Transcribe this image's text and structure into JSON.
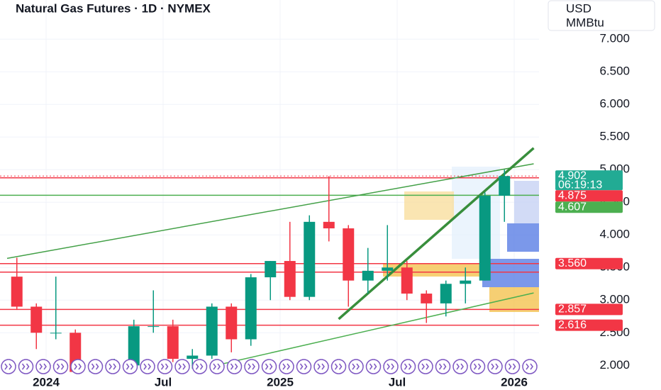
{
  "chart_data": {
    "type": "candlestick",
    "title": "Natural Gas Futures · 1D · NYMEX",
    "currency": "USD",
    "unit": "MMBtu",
    "x": [
      "2023-11",
      "2023-12",
      "2024-01",
      "2024-02",
      "2024-03",
      "2024-04",
      "2024-05",
      "2024-06",
      "2024-07",
      "2024-08",
      "2024-09",
      "2024-10",
      "2024-11",
      "2024-12",
      "2025-01",
      "2025-02",
      "2025-03",
      "2025-04",
      "2025-05",
      "2025-06",
      "2025-07",
      "2025-08",
      "2025-09",
      "2025-10",
      "2025-11",
      "2025-12"
    ],
    "open": [
      3.36,
      2.9,
      2.5,
      2.5,
      1.9,
      1.95,
      2.0,
      2.6,
      2.6,
      2.1,
      2.15,
      2.9,
      2.4,
      3.35,
      3.6,
      3.05,
      4.2,
      4.1,
      3.3,
      3.45,
      3.5,
      3.1,
      2.95,
      3.25,
      3.3,
      4.6
    ],
    "high": [
      3.65,
      2.95,
      3.36,
      2.55,
      2.0,
      2.1,
      2.7,
      3.15,
      2.7,
      2.25,
      2.95,
      2.95,
      3.4,
      3.6,
      4.2,
      4.3,
      4.9,
      4.15,
      3.8,
      4.15,
      3.6,
      3.15,
      3.3,
      3.5,
      4.65,
      5.0
    ],
    "low": [
      2.85,
      2.25,
      2.4,
      1.9,
      1.9,
      1.9,
      2.0,
      2.5,
      2.05,
      1.95,
      2.1,
      2.2,
      2.3,
      3.0,
      3.0,
      3.0,
      3.9,
      2.9,
      3.1,
      3.3,
      3.0,
      2.65,
      2.75,
      2.95,
      3.3,
      4.2
    ],
    "close": [
      2.9,
      2.5,
      2.5,
      1.9,
      1.95,
      2.0,
      2.6,
      2.6,
      2.1,
      2.15,
      2.9,
      2.4,
      3.35,
      3.6,
      3.05,
      4.2,
      4.1,
      3.3,
      3.45,
      3.5,
      3.1,
      2.95,
      3.25,
      3.3,
      4.6,
      4.902
    ],
    "up_color": "#089981",
    "down_color": "#f23645",
    "ylim": [
      1.84,
      7.6
    ],
    "yticks": [
      {
        "value": 2,
        "label": "2.000"
      },
      {
        "value": 2.5,
        "label": "2.500"
      },
      {
        "value": 3,
        "label": "3.000"
      },
      {
        "value": 3.5,
        "label": "3.500"
      },
      {
        "value": 4,
        "label": "4.000"
      },
      {
        "value": 4.5,
        "label": "4.500"
      },
      {
        "value": 5,
        "label": "5.000"
      },
      {
        "value": 5.5,
        "label": "5.500"
      },
      {
        "value": 6,
        "label": "6.000"
      },
      {
        "value": 6.5,
        "label": "6.500"
      },
      {
        "value": 7,
        "label": "7.000"
      }
    ],
    "xticks": [
      {
        "value": "2024-01",
        "label": "2024"
      },
      {
        "value": "2024-07",
        "label": "Jul"
      },
      {
        "value": "2025-01",
        "label": "2025"
      },
      {
        "value": "2025-07",
        "label": "Jul"
      },
      {
        "value": "2026-01",
        "label": "2026"
      }
    ],
    "grid": true,
    "last_price": 4.902,
    "last_color": "#22ab94",
    "countdown": "06:19:13",
    "levels": [
      {
        "value": 4.875,
        "label": "4.875",
        "color": "#f23645"
      },
      {
        "value": 4.607,
        "label": "4.607",
        "color": "#4caf50"
      },
      {
        "value": 3.56,
        "label": "3.560",
        "color": "#f23645"
      },
      {
        "value": 3.43,
        "color": "#f23645"
      },
      {
        "value": 2.857,
        "label": "2.857",
        "color": "#f23645"
      },
      {
        "value": 2.616,
        "label": "2.616",
        "color": "#f23645"
      }
    ],
    "trendlines": [
      {
        "x": [
          "2023-11",
          "2026-02"
        ],
        "y": [
          3.64,
          5.09
        ],
        "color": "#43a047",
        "width": 1.5
      },
      {
        "x": [
          "2025-04",
          "2026-02"
        ],
        "y": [
          2.71,
          5.33
        ],
        "color": "#388e3c",
        "width": 3.5
      },
      {
        "x": [
          "2024-10",
          "2026-02"
        ],
        "y": [
          2.02,
          3.11
        ],
        "color": "#4caf50",
        "width": 1.5
      }
    ]
  }
}
